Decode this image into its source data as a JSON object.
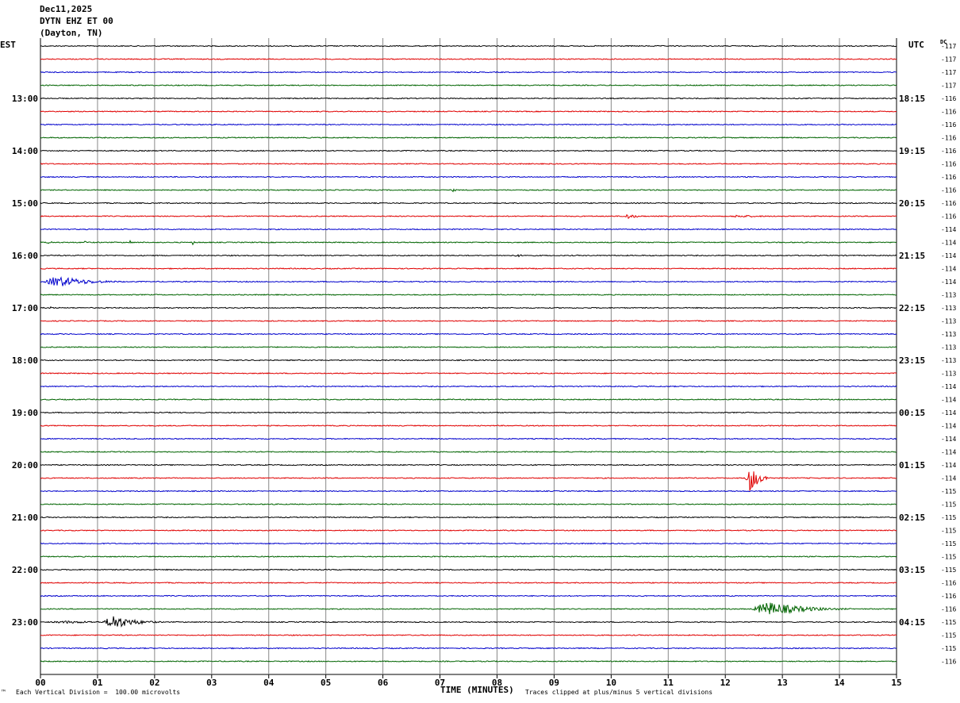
{
  "header": {
    "date": "Dec11,2025",
    "station": "DYTN EHZ ET 00",
    "location": "(Dayton, TN)"
  },
  "labels": {
    "left_tz": "EST",
    "right_tz": "UTC",
    "dc": "DC"
  },
  "footer": {
    "scale": "Each Vertical Division =  100.00 microvolts",
    "xlabel": "TIME (MINUTES)",
    "clip_note": "Traces clipped at plus/minus 5 vertical divisions"
  },
  "colors": {
    "cycle": [
      "#000000",
      "#e00000",
      "#0000cc",
      "#006400"
    ],
    "grid": "#888888"
  },
  "chart_data": {
    "type": "line",
    "title": "DYTN EHZ ET 00 (Dayton, TN) Dec11,2025",
    "xlabel": "TIME (MINUTES)",
    "xlim": [
      0,
      15
    ],
    "x_ticks": [
      "00",
      "01",
      "02",
      "03",
      "04",
      "05",
      "06",
      "07",
      "08",
      "09",
      "10",
      "11",
      "12",
      "13",
      "14",
      "15"
    ],
    "rows_per_hour": 4,
    "row_count": 48,
    "est_hour_labels": [
      "13:00",
      "14:00",
      "15:00",
      "16:00",
      "17:00",
      "18:00",
      "19:00",
      "20:00",
      "21:00",
      "22:00",
      "23:00"
    ],
    "utc_hour_labels": [
      "18:15",
      "19:15",
      "20:15",
      "21:15",
      "22:15",
      "23:15",
      "00:15",
      "01:15",
      "02:15",
      "03:15",
      "04:15"
    ],
    "first_labeled_row": 4,
    "dc_offsets": [
      -117,
      -117,
      -117,
      -117,
      -116,
      -116,
      -116,
      -116,
      -116,
      -116,
      -116,
      -116,
      -116,
      -116,
      -114,
      -114,
      -114,
      -114,
      -114,
      -113,
      -113,
      -113,
      -113,
      -113,
      -113,
      -113,
      -114,
      -114,
      -114,
      -114,
      -114,
      -114,
      -114,
      -114,
      -115,
      -115,
      -115,
      -115,
      -115,
      -115,
      -115,
      -116,
      -116,
      -116,
      -115,
      -115,
      -115,
      -116
    ],
    "base_noise": 0.18,
    "events": [
      {
        "row": 13,
        "start_min": 10.2,
        "dur_min": 0.5,
        "amp": 1.1
      },
      {
        "row": 13,
        "start_min": 12.0,
        "dur_min": 1.5,
        "amp": 0.5
      },
      {
        "row": 15,
        "start_min": 0.1,
        "dur_min": 0.2,
        "amp": 0.9
      },
      {
        "row": 15,
        "start_min": 0.75,
        "dur_min": 0.1,
        "amp": 1.2
      },
      {
        "row": 15,
        "start_min": 1.55,
        "dur_min": 0.1,
        "amp": 1.0
      },
      {
        "row": 15,
        "start_min": 2.65,
        "dur_min": 0.1,
        "amp": 1.0
      },
      {
        "row": 16,
        "start_min": 8.3,
        "dur_min": 0.2,
        "amp": 1.0
      },
      {
        "row": 18,
        "start_min": 0.05,
        "dur_min": 1.5,
        "amp": 2.2
      },
      {
        "row": 20,
        "start_min": 0.15,
        "dur_min": 0.15,
        "amp": 0.8
      },
      {
        "row": 11,
        "start_min": 7.2,
        "dur_min": 0.15,
        "amp": 0.9
      },
      {
        "row": 33,
        "start_min": 12.35,
        "dur_min": 0.45,
        "amp": 6.0
      },
      {
        "row": 43,
        "start_min": 12.45,
        "dur_min": 1.8,
        "amp": 2.8
      },
      {
        "row": 44,
        "start_min": 1.1,
        "dur_min": 1.0,
        "amp": 3.0
      },
      {
        "row": 44,
        "start_min": 0.0,
        "dur_min": 3.0,
        "amp": 0.5
      }
    ]
  }
}
